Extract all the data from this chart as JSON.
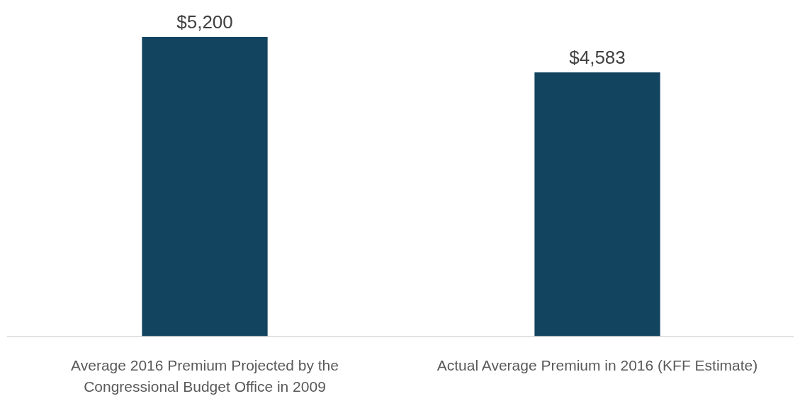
{
  "chart_data": {
    "type": "bar",
    "categories": [
      "Average 2016 Premium Projected by the Congressional Budget Office in 2009",
      "Actual Average Premium in 2016 (KFF Estimate)"
    ],
    "values": [
      5200,
      4583
    ],
    "value_labels": [
      "$5,200",
      "$4,583"
    ],
    "color": "#13445f"
  }
}
